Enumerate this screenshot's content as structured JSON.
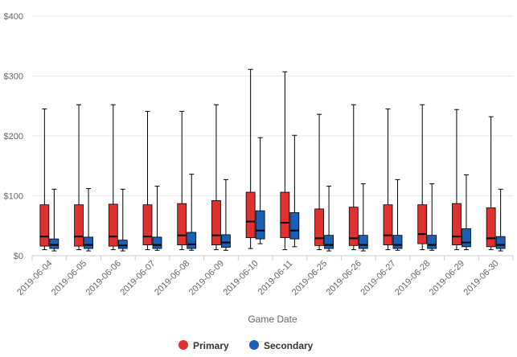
{
  "chart_data": {
    "type": "boxplot",
    "xlabel": "Game Date",
    "ylabel": "",
    "ylim": [
      0,
      400
    ],
    "yticks": [
      0,
      100,
      200,
      300,
      400
    ],
    "ytick_labels": [
      "$0",
      "$100",
      "$200",
      "$300",
      "$400"
    ],
    "grid": true,
    "legend_position": "bottom-center",
    "categories": [
      "2019-06-04",
      "2019-06-05",
      "2019-06-06",
      "2019-06-07",
      "2019-06-08",
      "2019-06-09",
      "2019-06-10",
      "2019-06-11",
      "2019-06-25",
      "2019-06-26",
      "2019-06-27",
      "2019-06-28",
      "2019-06-29",
      "2019-06-30"
    ],
    "series": [
      {
        "name": "Primary",
        "color": "#e03131",
        "boxes": [
          {
            "min": 10,
            "q1": 16,
            "median": 32,
            "q3": 85,
            "max": 245
          },
          {
            "min": 10,
            "q1": 16,
            "median": 32,
            "q3": 85,
            "max": 252
          },
          {
            "min": 10,
            "q1": 16,
            "median": 32,
            "q3": 86,
            "max": 252
          },
          {
            "min": 10,
            "q1": 18,
            "median": 32,
            "q3": 85,
            "max": 241
          },
          {
            "min": 10,
            "q1": 18,
            "median": 34,
            "q3": 87,
            "max": 241
          },
          {
            "min": 10,
            "q1": 18,
            "median": 34,
            "q3": 92,
            "max": 252
          },
          {
            "min": 12,
            "q1": 30,
            "median": 57,
            "q3": 106,
            "max": 311
          },
          {
            "min": 10,
            "q1": 30,
            "median": 55,
            "q3": 106,
            "max": 307
          },
          {
            "min": 10,
            "q1": 17,
            "median": 29,
            "q3": 78,
            "max": 236
          },
          {
            "min": 10,
            "q1": 17,
            "median": 29,
            "q3": 81,
            "max": 252
          },
          {
            "min": 10,
            "q1": 18,
            "median": 34,
            "q3": 85,
            "max": 245
          },
          {
            "min": 10,
            "q1": 20,
            "median": 36,
            "q3": 85,
            "max": 252
          },
          {
            "min": 10,
            "q1": 18,
            "median": 32,
            "q3": 87,
            "max": 244
          },
          {
            "min": 10,
            "q1": 15,
            "median": 29,
            "q3": 80,
            "max": 232
          }
        ]
      },
      {
        "name": "Secondary",
        "color": "#1c5fb5",
        "boxes": [
          {
            "min": 8,
            "q1": 12,
            "median": 18,
            "q3": 28,
            "max": 111
          },
          {
            "min": 8,
            "q1": 12,
            "median": 18,
            "q3": 31,
            "max": 112
          },
          {
            "min": 8,
            "q1": 12,
            "median": 17,
            "q3": 26,
            "max": 111
          },
          {
            "min": 9,
            "q1": 12,
            "median": 18,
            "q3": 31,
            "max": 116
          },
          {
            "min": 9,
            "q1": 12,
            "median": 19,
            "q3": 39,
            "max": 136
          },
          {
            "min": 9,
            "q1": 14,
            "median": 22,
            "q3": 35,
            "max": 127
          },
          {
            "min": 20,
            "q1": 28,
            "median": 42,
            "q3": 75,
            "max": 197
          },
          {
            "min": 15,
            "q1": 28,
            "median": 42,
            "q3": 72,
            "max": 201
          },
          {
            "min": 8,
            "q1": 12,
            "median": 18,
            "q3": 34,
            "max": 116
          },
          {
            "min": 8,
            "q1": 12,
            "median": 18,
            "q3": 34,
            "max": 120
          },
          {
            "min": 9,
            "q1": 12,
            "median": 18,
            "q3": 34,
            "max": 127
          },
          {
            "min": 9,
            "q1": 12,
            "median": 18,
            "q3": 34,
            "max": 120
          },
          {
            "min": 10,
            "q1": 15,
            "median": 22,
            "q3": 45,
            "max": 135
          },
          {
            "min": 8,
            "q1": 12,
            "median": 18,
            "q3": 32,
            "max": 111
          }
        ]
      }
    ]
  }
}
